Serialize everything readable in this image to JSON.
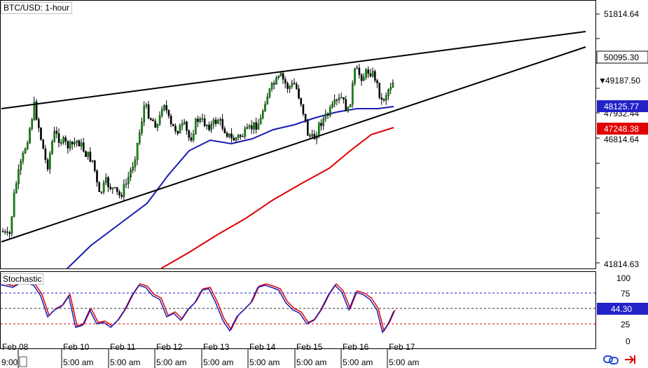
{
  "window": {
    "title": "BTC/USD: 1-hour"
  },
  "indicator": {
    "name": "Stochastic"
  },
  "price_axis": {
    "ticks": [
      "51814.64",
      "46814.64",
      "41814.63"
    ],
    "tags": [
      {
        "text": "50095.30",
        "bg": "#ffffff",
        "fg": "#000000",
        "price": 50095.3,
        "prefix": ""
      },
      {
        "text": "49187.50",
        "bg": "#ffffff",
        "fg": "#000000",
        "price": 49187.5,
        "prefix": "▼"
      },
      {
        "text": "48125.77",
        "bg": "#2222c8",
        "fg": "#ffffff",
        "price": 48125.77,
        "prefix": ""
      },
      {
        "text": "47248.38",
        "bg": "#e00000",
        "fg": "#ffffff",
        "price": 47248.38,
        "prefix": ""
      }
    ],
    "partial_label": "47932.44"
  },
  "stoch_axis": {
    "ticks": [
      "100",
      "75",
      "25",
      "0"
    ],
    "tag": {
      "text": "44.30",
      "bg": "#2222c8",
      "fg": "#ffffff"
    }
  },
  "time_axis": {
    "dates": [
      "Feb 08",
      "Feb 10",
      "Feb 11",
      "Feb 12",
      "Feb 13",
      "Feb 14",
      "Feb 15",
      "Feb 16",
      "Feb 17"
    ],
    "times": [
      "9:00",
      "5:00 am",
      "5:00 am",
      "5:00 am",
      "5:00 am",
      "5:00 am",
      "5:00 am",
      "5:00 am",
      "5:00 am"
    ]
  },
  "colors": {
    "bull_candle": "#00a000",
    "bear_candle": "#000000",
    "ma_fast": "#1a1ab4",
    "ma_slow": "#e00000",
    "trendline": "#000000",
    "stoch_k": "#1a1ab4",
    "stoch_d": "#e00000",
    "level_upper": "#1a1ab4",
    "level_lower": "#e00000",
    "level_mid": "#333333"
  },
  "icons": [
    "chain-link-icon",
    "red-arrow-icon"
  ]
}
